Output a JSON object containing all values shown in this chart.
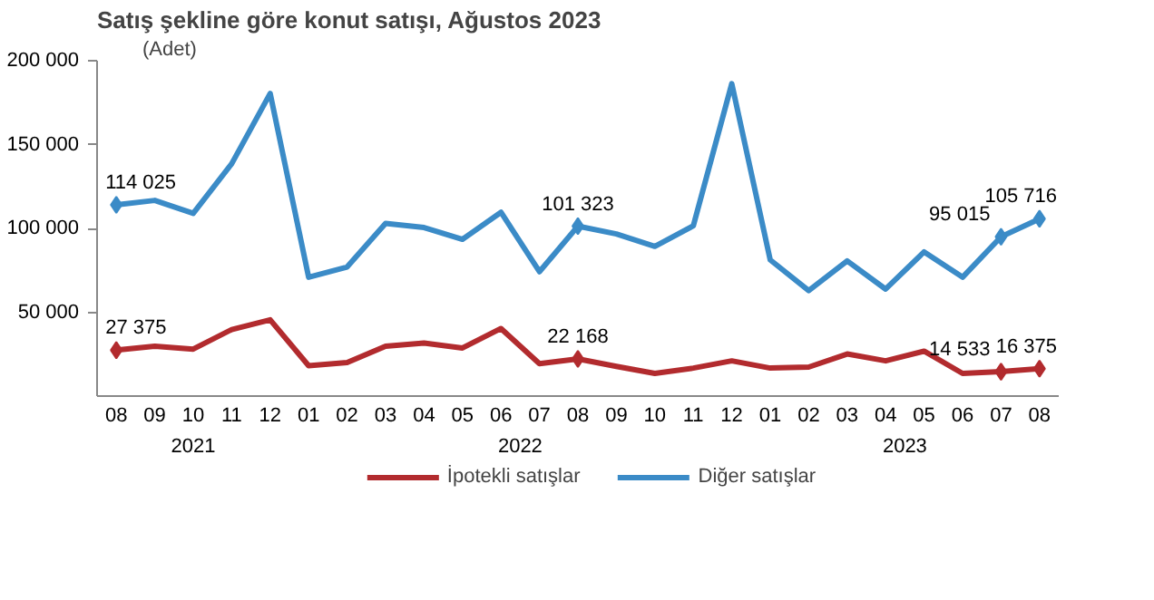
{
  "chart_data": {
    "type": "line",
    "title": "Satış şekline göre konut satışı, Ağustos 2023",
    "ylabel": "(Adet)",
    "categories": [
      "08",
      "09",
      "10",
      "11",
      "12",
      "01",
      "02",
      "03",
      "04",
      "05",
      "06",
      "07",
      "08",
      "09",
      "10",
      "11",
      "12",
      "01",
      "02",
      "03",
      "04",
      "05",
      "06",
      "07",
      "08"
    ],
    "annotations": [
      "2021",
      "2022",
      "2023"
    ],
    "series": [
      {
        "name": "İpotekli satışlar",
        "color": "#b22b2e",
        "values": [
          27375,
          29700,
          28000,
          39700,
          45500,
          18100,
          20000,
          29700,
          31600,
          28700,
          40300,
          19300,
          22168,
          17700,
          13500,
          16700,
          21000,
          16700,
          17300,
          25100,
          21000,
          26800,
          13500,
          14533,
          16375
        ],
        "value_labels": [
          "27 375",
          null,
          null,
          null,
          null,
          null,
          null,
          null,
          null,
          null,
          null,
          null,
          "22 168",
          null,
          null,
          null,
          null,
          null,
          null,
          null,
          null,
          null,
          null,
          "14 533",
          "16 375"
        ]
      },
      {
        "name": "Diğer satışlar",
        "color": "#3b8bc7",
        "values": [
          114025,
          116700,
          109000,
          138600,
          180500,
          70900,
          77000,
          103000,
          100500,
          93500,
          109600,
          74200,
          101323,
          96700,
          89300,
          101500,
          186300,
          81200,
          62900,
          80600,
          63800,
          86000,
          70900,
          95015,
          105716
        ],
        "value_labels": [
          "114 025",
          null,
          null,
          null,
          null,
          null,
          null,
          null,
          null,
          null,
          null,
          null,
          "101 323",
          null,
          null,
          null,
          null,
          null,
          null,
          null,
          null,
          null,
          null,
          "95 015",
          "105 716"
        ]
      }
    ],
    "ylim": [
      0,
      200000
    ],
    "yticks": [
      {
        "value": 50000,
        "label": "50 000"
      },
      {
        "value": 100000,
        "label": "100 000"
      },
      {
        "value": 150000,
        "label": "150 000"
      },
      {
        "value": 200000,
        "label": "200 000"
      }
    ],
    "grid": false,
    "legend": "bottom",
    "line_style": "solid"
  }
}
